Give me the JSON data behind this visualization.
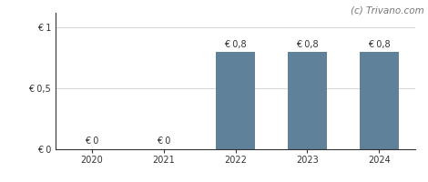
{
  "categories": [
    "2020",
    "2021",
    "2022",
    "2023",
    "2024"
  ],
  "values": [
    0,
    0,
    0.8,
    0.8,
    0.8
  ],
  "bar_color": "#5f8199",
  "bar_labels": [
    "€ 0",
    "€ 0",
    "€ 0,8",
    "€ 0,8",
    "€ 0,8"
  ],
  "yticks": [
    0,
    0.5,
    1
  ],
  "ytick_labels": [
    "€ 0",
    "€ 0,5",
    "€ 1"
  ],
  "ylim": [
    0,
    1.12
  ],
  "watermark": "(c) Trivano.com",
  "background_color": "#ffffff",
  "grid_color": "#d0d0d0",
  "bar_width": 0.55,
  "label_fontsize": 7.0,
  "tick_fontsize": 7.0,
  "watermark_fontsize": 7.5,
  "label_color": "#333333",
  "axis_color": "#333333",
  "spine_color": "#333333"
}
